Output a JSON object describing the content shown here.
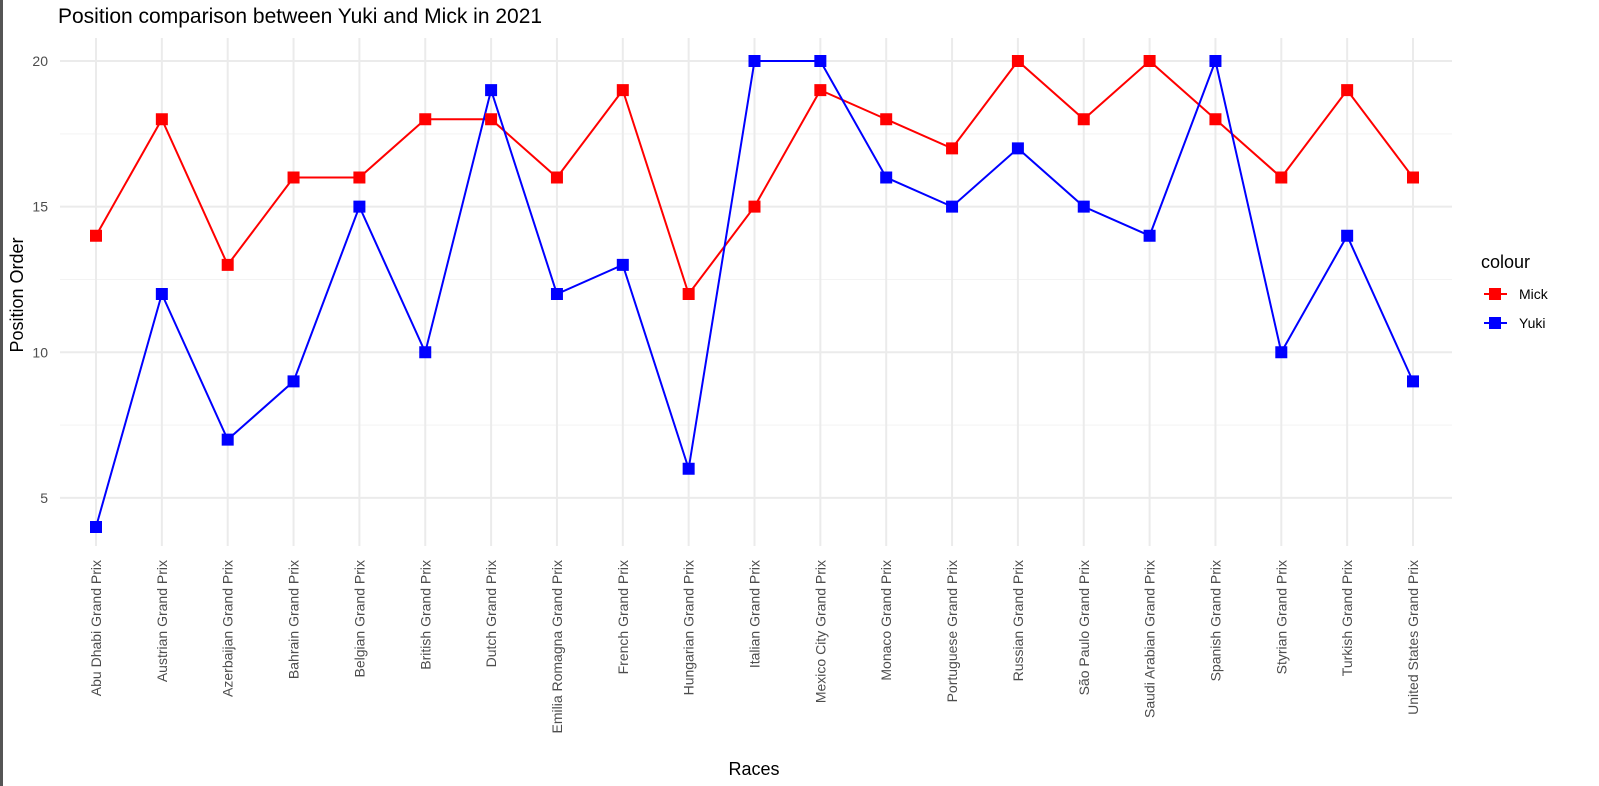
{
  "chart_data": {
    "type": "line",
    "title": "Position comparison between Yuki and Mick in 2021",
    "xlabel": "Races",
    "ylabel": "Position Order",
    "categories": [
      "Abu Dhabi Grand Prix",
      "Austrian Grand Prix",
      "Azerbaijan Grand Prix",
      "Bahrain Grand Prix",
      "Belgian Grand Prix",
      "British Grand Prix",
      "Dutch Grand Prix",
      "Emilia Romagna Grand Prix",
      "French Grand Prix",
      "Hungarian Grand Prix",
      "Italian Grand Prix",
      "Mexico City Grand Prix",
      "Monaco Grand Prix",
      "Portuguese Grand Prix",
      "Russian Grand Prix",
      "São Paulo Grand Prix",
      "Saudi Arabian Grand Prix",
      "Spanish Grand Prix",
      "Styrian Grand Prix",
      "Turkish Grand Prix",
      "United States Grand Prix"
    ],
    "series": [
      {
        "name": "Mick",
        "color": "#ff0000",
        "values": [
          14,
          18,
          13,
          16,
          16,
          18,
          18,
          16,
          19,
          12,
          15,
          19,
          18,
          17,
          20,
          18,
          20,
          18,
          16,
          19,
          16
        ]
      },
      {
        "name": "Yuki",
        "color": "#0000ff",
        "values": [
          4,
          12,
          7,
          9,
          15,
          10,
          19,
          12,
          13,
          6,
          20,
          20,
          16,
          15,
          17,
          15,
          14,
          20,
          10,
          14,
          9
        ]
      }
    ],
    "yticks": [
      5,
      10,
      15,
      20
    ],
    "ylim": [
      3.2,
      20.8
    ],
    "legend": {
      "title": "colour",
      "position": "right"
    },
    "grid": true
  }
}
